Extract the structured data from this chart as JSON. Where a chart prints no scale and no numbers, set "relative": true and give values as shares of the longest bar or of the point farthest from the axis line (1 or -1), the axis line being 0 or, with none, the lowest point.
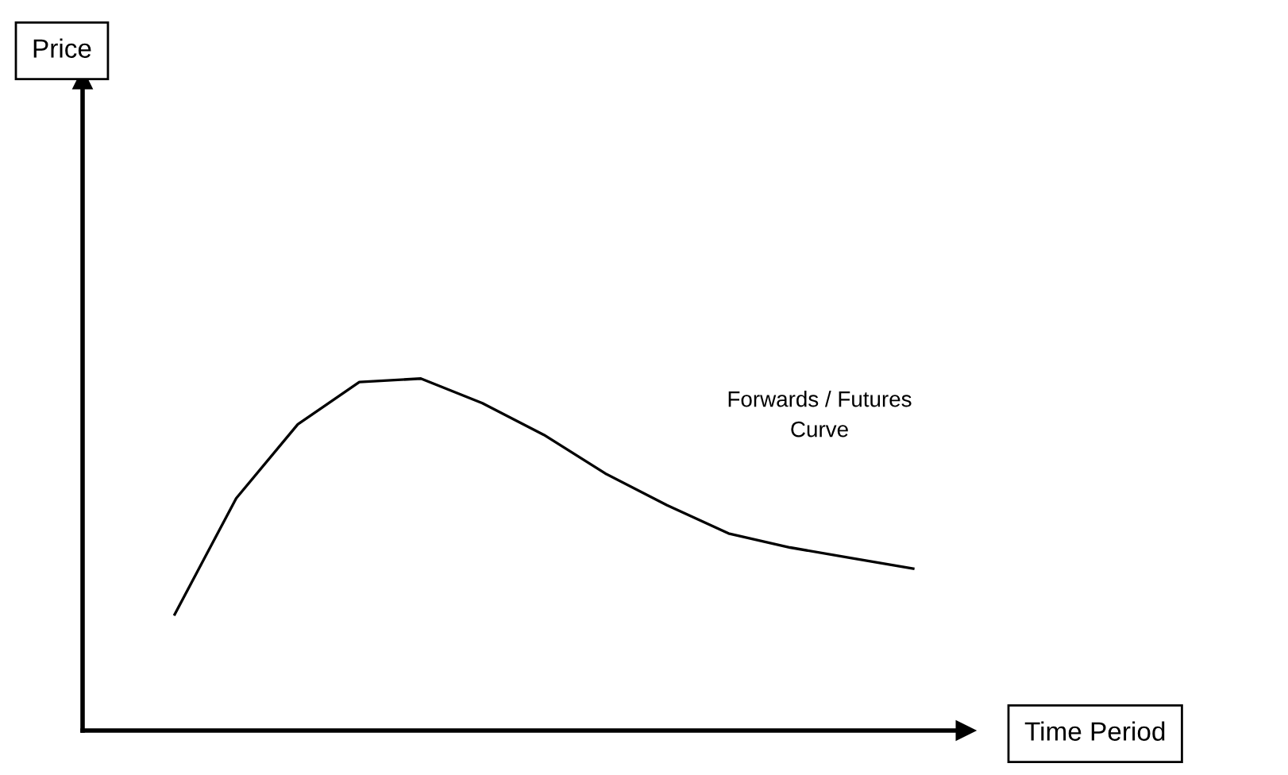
{
  "chart_data": {
    "type": "line",
    "relative": true,
    "xlabel": "Time Period",
    "categories": [
      null,
      null,
      null,
      null,
      null,
      null,
      null,
      null,
      null,
      null,
      null,
      null,
      null
    ],
    "series": [
      {
        "color": "#000000",
        "values": [
          0.33,
          0.66,
          0.87,
          0.99,
          1,
          0.93,
          0.84,
          0.73,
          0.64,
          0.56,
          0.52,
          0.49,
          0.46
        ]
      }
    ],
    "annotations": [
      "Price",
      "Forwards / Futures\nCurve"
    ],
    "marker": "none",
    "line_style": "solid"
  }
}
